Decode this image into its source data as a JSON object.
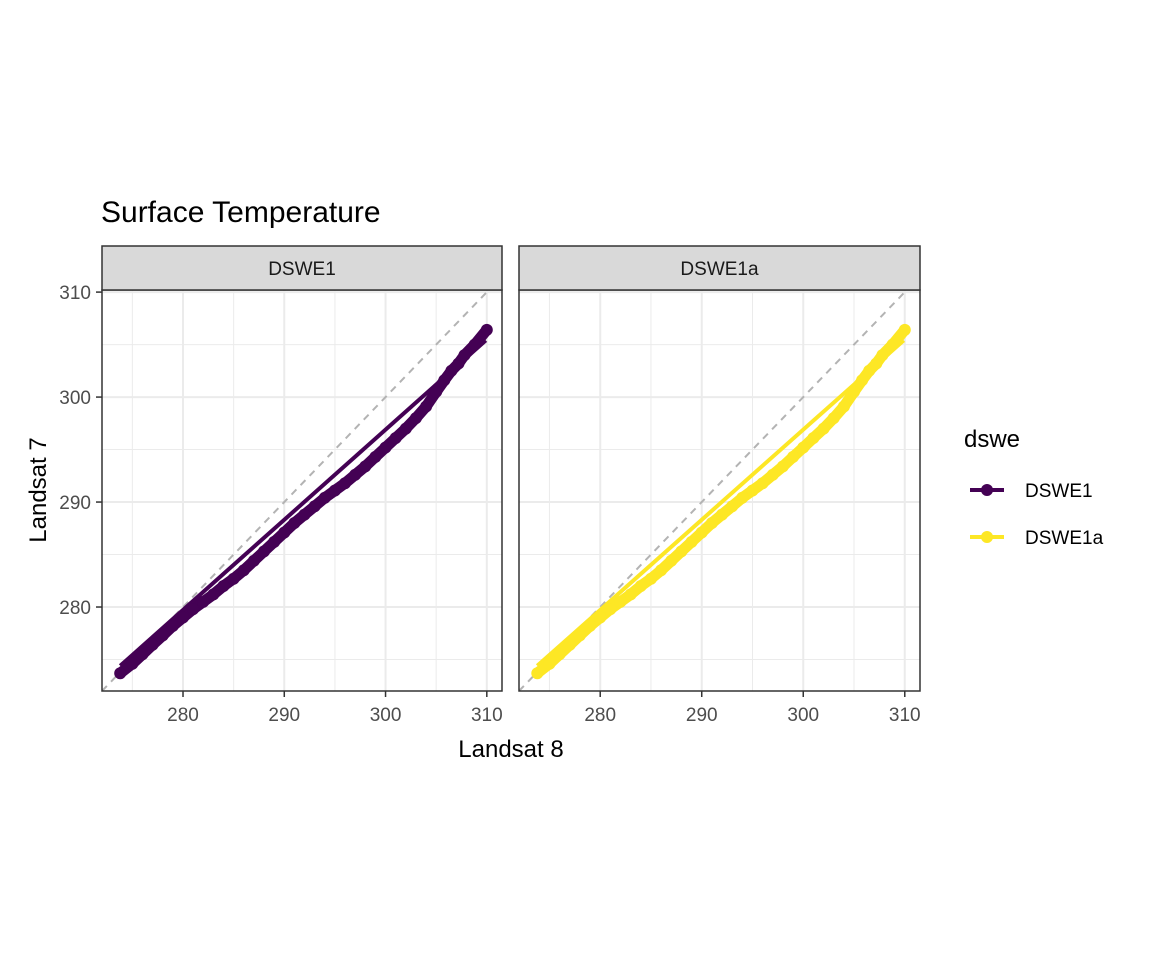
{
  "chart_data": {
    "type": "scatter",
    "title": "Surface Temperature",
    "xlabel": "Landsat 8",
    "ylabel": "Landsat 7",
    "xlim": [
      272,
      311.5
    ],
    "ylim": [
      272,
      310.2
    ],
    "x_ticks": [
      280,
      290,
      300,
      310
    ],
    "y_ticks": [
      280,
      290,
      300,
      310
    ],
    "grid": true,
    "reference_line": {
      "slope": 1,
      "intercept": 0,
      "style": "dashed",
      "color": "#b3b3b3"
    },
    "panels": [
      "DSWE1",
      "DSWE1a"
    ],
    "legend": {
      "title": "dswe",
      "placement": "right",
      "entries": [
        {
          "label": "DSWE1",
          "color": "#440154"
        },
        {
          "label": "DSWE1a",
          "color": "#FDE725"
        }
      ]
    },
    "series": [
      {
        "panel": "DSWE1",
        "color": "#440154",
        "points": [
          [
            273.8,
            273.7
          ],
          [
            275.0,
            274.6
          ],
          [
            276.0,
            275.5
          ],
          [
            277.0,
            276.4
          ],
          [
            278.0,
            277.3
          ],
          [
            279.0,
            278.2
          ],
          [
            280.0,
            279.0
          ],
          [
            281.0,
            279.8
          ],
          [
            282.0,
            280.5
          ],
          [
            283.0,
            281.2
          ],
          [
            284.0,
            282.0
          ],
          [
            285.0,
            282.7
          ],
          [
            286.0,
            283.5
          ],
          [
            287.0,
            284.4
          ],
          [
            288.0,
            285.3
          ],
          [
            289.0,
            286.2
          ],
          [
            290.0,
            287.1
          ],
          [
            291.0,
            288.0
          ],
          [
            292.0,
            288.8
          ],
          [
            293.0,
            289.6
          ],
          [
            294.0,
            290.4
          ],
          [
            295.0,
            291.1
          ],
          [
            296.0,
            291.8
          ],
          [
            297.0,
            292.6
          ],
          [
            298.0,
            293.4
          ],
          [
            299.0,
            294.3
          ],
          [
            300.0,
            295.2
          ],
          [
            301.0,
            296.1
          ],
          [
            302.0,
            297.0
          ],
          [
            303.0,
            298.0
          ],
          [
            304.0,
            299.1
          ],
          [
            305.0,
            300.5
          ],
          [
            305.8,
            301.6
          ],
          [
            306.5,
            302.5
          ],
          [
            307.2,
            303.2
          ],
          [
            307.8,
            304.0
          ],
          [
            308.8,
            305.0
          ],
          [
            310.0,
            306.4
          ]
        ],
        "fit_line": [
          [
            273.8,
            274.4
          ],
          [
            309.9,
            305.4
          ]
        ]
      },
      {
        "panel": "DSWE1a",
        "color": "#FDE725",
        "points": [
          [
            273.8,
            273.7
          ],
          [
            275.0,
            274.6
          ],
          [
            276.0,
            275.5
          ],
          [
            277.0,
            276.4
          ],
          [
            278.0,
            277.3
          ],
          [
            279.0,
            278.2
          ],
          [
            280.0,
            279.0
          ],
          [
            281.0,
            279.8
          ],
          [
            282.0,
            280.5
          ],
          [
            283.0,
            281.2
          ],
          [
            284.0,
            282.0
          ],
          [
            285.0,
            282.7
          ],
          [
            286.0,
            283.5
          ],
          [
            287.0,
            284.4
          ],
          [
            288.0,
            285.3
          ],
          [
            289.0,
            286.2
          ],
          [
            290.0,
            287.1
          ],
          [
            291.0,
            288.0
          ],
          [
            292.0,
            288.8
          ],
          [
            293.0,
            289.6
          ],
          [
            294.0,
            290.4
          ],
          [
            295.0,
            291.1
          ],
          [
            296.0,
            291.8
          ],
          [
            297.0,
            292.6
          ],
          [
            298.0,
            293.4
          ],
          [
            299.0,
            294.3
          ],
          [
            300.0,
            295.2
          ],
          [
            301.0,
            296.1
          ],
          [
            302.0,
            297.0
          ],
          [
            303.0,
            298.0
          ],
          [
            304.0,
            299.1
          ],
          [
            305.0,
            300.5
          ],
          [
            305.8,
            301.6
          ],
          [
            306.5,
            302.5
          ],
          [
            307.2,
            303.2
          ],
          [
            307.8,
            304.0
          ],
          [
            308.8,
            305.0
          ],
          [
            310.0,
            306.4
          ]
        ],
        "fit_line": [
          [
            273.8,
            274.4
          ],
          [
            309.9,
            305.4
          ]
        ]
      }
    ]
  }
}
